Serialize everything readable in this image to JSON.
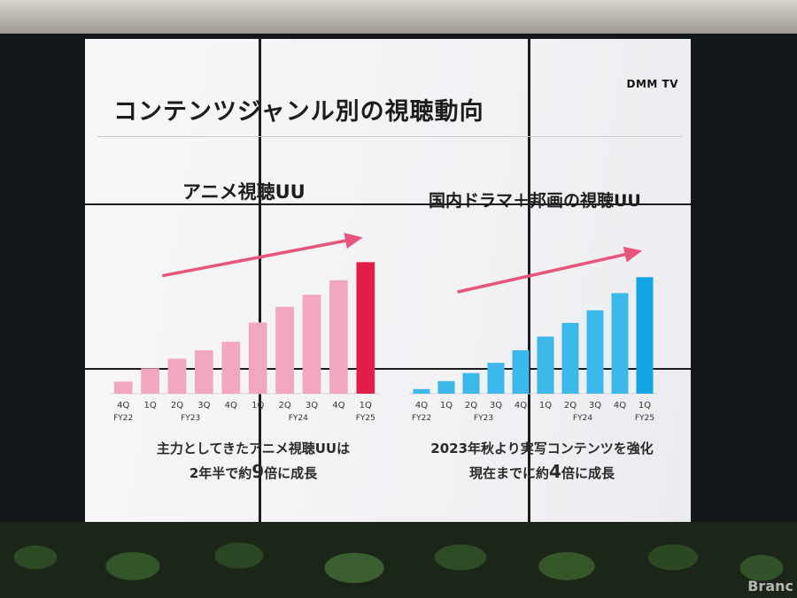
{
  "slide": {
    "title": "コンテンツジャンル別の視聴動向",
    "logo": "DMM TV"
  },
  "watermark": "Branc",
  "chart_data": [
    {
      "type": "bar",
      "title": "アニメ視聴UU",
      "color": "#f0a7bf",
      "highlight_color": "#e11d48",
      "arrow_color": "#e8557c",
      "categories": [
        "4Q",
        "1Q",
        "2Q",
        "3Q",
        "4Q",
        "1Q",
        "2Q",
        "3Q",
        "4Q",
        "1Q"
      ],
      "fiscal_years": [
        {
          "label": "FY22",
          "index": 0
        },
        {
          "label": "FY23",
          "index": 2.5
        },
        {
          "label": "FY24",
          "index": 6.5
        },
        {
          "label": "FY25",
          "index": 9
        }
      ],
      "values": [
        1.0,
        2.1,
        2.9,
        3.6,
        4.3,
        5.9,
        7.2,
        8.2,
        9.4,
        10.9
      ],
      "ylim": [
        0,
        11
      ],
      "caption_line1": "主力としてきたアニメ視聴UUは",
      "caption_pre": "2年半で約",
      "caption_num": "9",
      "caption_post": "倍に成長"
    },
    {
      "type": "bar",
      "title": "国内ドラマ＋邦画の視聴UU",
      "color": "#3cb8eb",
      "highlight_color": "#12a5e6",
      "arrow_color": "#e8557c",
      "categories": [
        "4Q",
        "1Q",
        "2Q",
        "3Q",
        "4Q",
        "1Q",
        "2Q",
        "3Q",
        "4Q",
        "1Q"
      ],
      "fiscal_years": [
        {
          "label": "FY22",
          "index": 0
        },
        {
          "label": "FY23",
          "index": 2.5
        },
        {
          "label": "FY24",
          "index": 6.5
        },
        {
          "label": "FY25",
          "index": 9
        }
      ],
      "values": [
        0.4,
        1.1,
        1.8,
        2.7,
        3.8,
        5.0,
        6.2,
        7.3,
        8.8,
        10.2
      ],
      "ylim": [
        0,
        11
      ],
      "caption_line1": "2023年秋より実写コンテンツを強化",
      "caption_pre": "現在までに約",
      "caption_num": "4",
      "caption_post": "倍に成長"
    }
  ]
}
